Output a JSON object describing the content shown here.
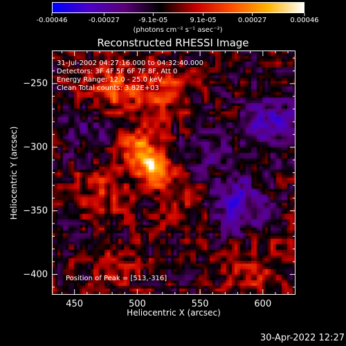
{
  "colorbar": {
    "tick_labels": [
      "-0.00046",
      "-0.00027",
      "-9.1e-05",
      "9.1e-05",
      "0.00027",
      "0.00046"
    ],
    "tick_values": [
      -0.00046,
      -0.00027,
      -9.1e-05,
      9.1e-05,
      0.00027,
      0.00046
    ],
    "range": [
      -0.00046,
      0.00046
    ],
    "unit": "(photons cm⁻² s⁻¹ asec⁻²)",
    "colors": [
      "#0000ff",
      "#4b00c8",
      "#5a0078",
      "#000000",
      "#c80000",
      "#ff5000",
      "#ffb400",
      "#ffffff"
    ]
  },
  "chart_data": {
    "type": "heatmap",
    "title": "Reconstructed RHESSI Image",
    "xlabel": "Heliocentric X (arcsec)",
    "ylabel": "Heliocentric Y (arcsec)",
    "xlim": [
      432,
      626
    ],
    "ylim": [
      -416,
      -224
    ],
    "x_ticks": [
      450,
      500,
      550,
      600
    ],
    "y_ticks": [
      -250,
      -300,
      -350,
      -400
    ],
    "x_tick_labels": [
      "450",
      "500",
      "550",
      "600"
    ],
    "y_tick_labels": [
      "−250",
      "−300",
      "−350",
      "−400"
    ],
    "annotations": [
      "31-Jul-2002 04:27:16.000 to 04:32:40.000",
      "Detectors: 3F 4F 5F 6F 7F 8F, Att 0",
      "Energy Range: 12.0 - 25.0 keV",
      "Clean     Total counts: 3.82E+03"
    ],
    "peak_label": "Position of Peak = [513,-316]",
    "peak": [
      513,
      -316
    ],
    "sources": [
      {
        "x": 513,
        "y": -316,
        "value": 0.00046
      },
      {
        "x": 500,
        "y": -300,
        "value": 0.00034
      },
      {
        "x": 478,
        "y": -255,
        "value": 0.0002
      },
      {
        "x": 520,
        "y": -255,
        "value": 0.00018
      },
      {
        "x": 470,
        "y": -330,
        "value": 0.00015
      },
      {
        "x": 595,
        "y": -395,
        "value": 0.00014
      },
      {
        "x": 540,
        "y": -345,
        "value": 9e-05
      },
      {
        "x": 480,
        "y": -395,
        "value": 8e-05
      },
      {
        "x": 555,
        "y": -300,
        "value": -0.0001
      },
      {
        "x": 605,
        "y": -280,
        "value": -0.00022
      },
      {
        "x": 580,
        "y": -345,
        "value": -0.00024
      },
      {
        "x": 460,
        "y": -285,
        "value": -0.00012
      }
    ]
  },
  "timestamp": "30-Apr-2022 12:27"
}
